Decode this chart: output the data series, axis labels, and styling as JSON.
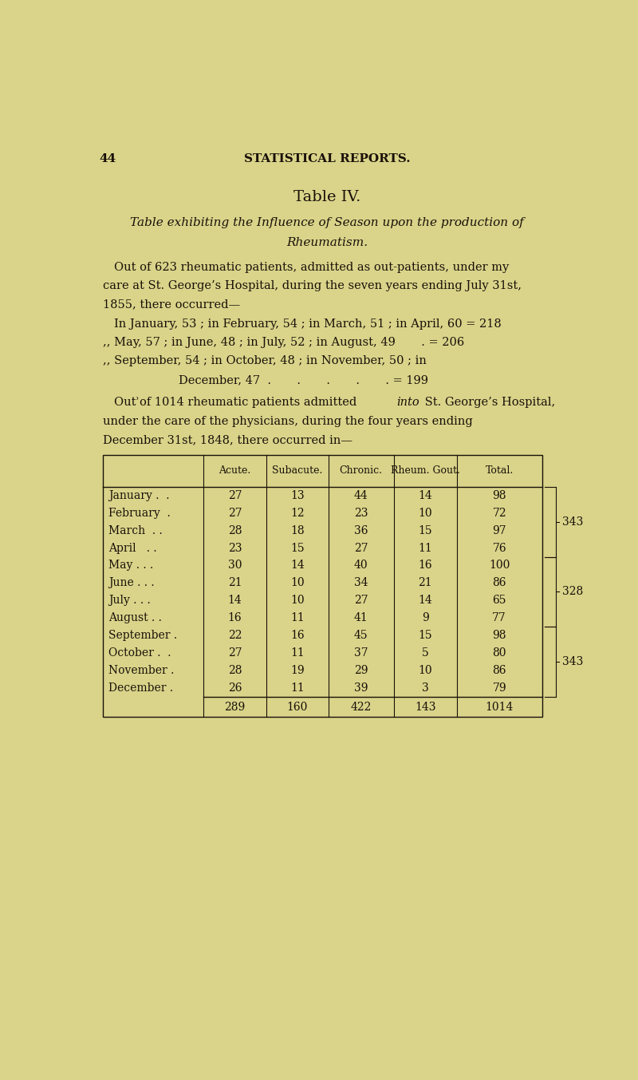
{
  "bg_color": "#d9d48a",
  "page_num": "44",
  "header": "STATISTICAL REPORTS.",
  "title": "Table IV.",
  "subtitle_line1": "Table exhibiting the Influence of Season upon the production of",
  "subtitle_line2": "Rheumatism.",
  "para1_line1": "Out of 623 rheumatic patients, admitted as out-patients, under my",
  "para1_line2": "care at St. George’s Hospital, during the seven years ending July 31st,",
  "para1_line3": "1855, there occurred—",
  "line1": "In January, 53 ; in February, 54 ; in March, 51 ; in April, 60 = 218",
  "line2": ",, May, 57 ; in June, 48 ; in July, 52 ; in August, 49       . = 206",
  "line3": ",, September, 54 ; in October, 48 ; in November, 50 ; in",
  "line4": "December, 47  .       .       .       .       . = 199",
  "para2_prefix": "Outʾof 1014 rheumatic patients admitted ",
  "para2_italic": "into",
  "para2_suffix": " St. George’s Hospital,",
  "para2_line2": "under the care of the physicians, during the four years ending",
  "para2_line3": "December 31st, 1848, there occurred in—",
  "col_headers": [
    "Acute.",
    "Subacute.",
    "Chronic.",
    "Rheum. Gout.",
    "Total."
  ],
  "month_display": [
    "January .  .",
    "February  .",
    "March  . .",
    "April   . .",
    "May . . .",
    "June . . .",
    "July . . .",
    "August . .",
    "September .",
    "October .  .",
    "November .",
    "December ."
  ],
  "data": [
    [
      27,
      13,
      44,
      14,
      98
    ],
    [
      27,
      12,
      23,
      10,
      72
    ],
    [
      28,
      18,
      36,
      15,
      97
    ],
    [
      23,
      15,
      27,
      11,
      76
    ],
    [
      30,
      14,
      40,
      16,
      100
    ],
    [
      21,
      10,
      34,
      21,
      86
    ],
    [
      14,
      10,
      27,
      14,
      65
    ],
    [
      16,
      11,
      41,
      9,
      77
    ],
    [
      22,
      16,
      45,
      15,
      98
    ],
    [
      27,
      11,
      37,
      5,
      80
    ],
    [
      28,
      19,
      29,
      10,
      86
    ],
    [
      26,
      11,
      39,
      3,
      79
    ]
  ],
  "totals_row": [
    289,
    160,
    422,
    143,
    1014
  ],
  "brace_groups": [
    [
      0,
      3,
      "343"
    ],
    [
      4,
      7,
      "328"
    ],
    [
      8,
      11,
      "343"
    ]
  ]
}
